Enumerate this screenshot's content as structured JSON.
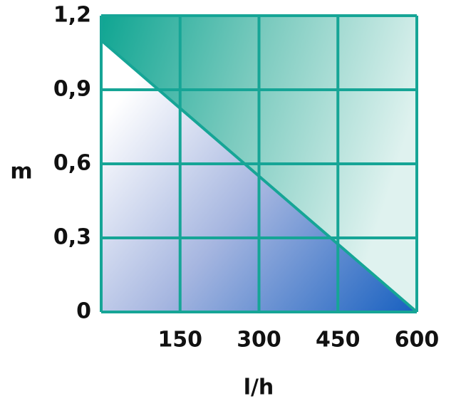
{
  "chart_data": {
    "type": "line",
    "x_label": "l/h",
    "y_label": "m",
    "x": [
      0,
      600
    ],
    "values": [
      1.1,
      0
    ],
    "color": "#16a596",
    "xlim": [
      0,
      600
    ],
    "xticks": [
      150,
      300,
      450,
      600
    ],
    "ylim": [
      0,
      1.2
    ],
    "yticks": [
      0,
      {
        "value": 0.3,
        "label": "0,3"
      },
      {
        "value": 0.6,
        "label": "0,6"
      },
      {
        "value": 0.9,
        "label": "0,9"
      },
      {
        "value": 1.2,
        "label": "1,2"
      }
    ],
    "grid": true
  }
}
